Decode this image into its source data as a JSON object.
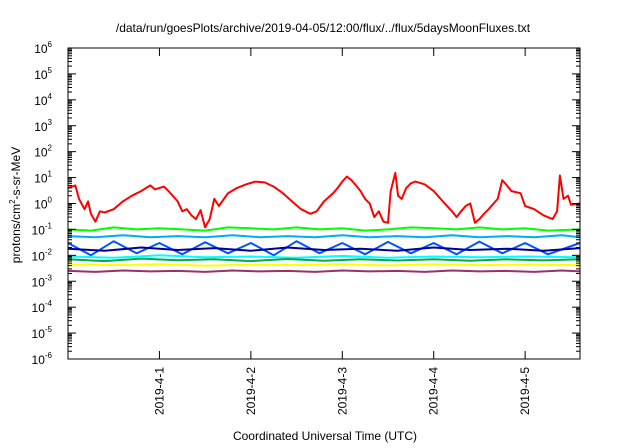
{
  "chart_data": {
    "type": "line",
    "title": "/data/run/goesPlots/archive/2019-04-05/12:00/flux/../flux/5daysMoonFluxes.txt",
    "xlabel": "Coordinated Universal Time (UTC)",
    "ylabel_parts": [
      "protons/cm",
      "2",
      "-s-sr-MeV"
    ],
    "yscale": "log",
    "ylim": [
      1e-06,
      1000000.0
    ],
    "xlim": [
      0,
      5.6
    ],
    "xlim_note": "days after 2019-03-31 00:00 UTC",
    "grid": false,
    "legend": "none",
    "xticks": [
      {
        "x": 1,
        "label": "2019-4-1"
      },
      {
        "x": 2,
        "label": "2019-4-2"
      },
      {
        "x": 3,
        "label": "2019-4-3"
      },
      {
        "x": 4,
        "label": "2019-4-4"
      },
      {
        "x": 5,
        "label": "2019-4-5"
      }
    ],
    "yticks": [
      {
        "exp": "-6",
        "value": 1e-06
      },
      {
        "exp": "-5",
        "value": 1e-05
      },
      {
        "exp": "-4",
        "value": 0.0001
      },
      {
        "exp": "-3",
        "value": 0.001
      },
      {
        "exp": "-2",
        "value": 0.01
      },
      {
        "exp": "-1",
        "value": 0.1
      },
      {
        "exp": "0",
        "value": 1
      },
      {
        "exp": "1",
        "value": 10
      },
      {
        "exp": "2",
        "value": 100
      },
      {
        "exp": "3",
        "value": 1000
      },
      {
        "exp": "4",
        "value": 10000
      },
      {
        "exp": "5",
        "value": 100000
      },
      {
        "exp": "6",
        "value": 1000000
      }
    ],
    "series": [
      {
        "color": "#ff0000",
        "width": 2,
        "values": [
          [
            0.0,
            4.0
          ],
          [
            0.08,
            5.0
          ],
          [
            0.12,
            1.5
          ],
          [
            0.18,
            0.6
          ],
          [
            0.22,
            1.2
          ],
          [
            0.25,
            0.4
          ],
          [
            0.3,
            0.2
          ],
          [
            0.35,
            0.5
          ],
          [
            0.4,
            0.45
          ],
          [
            0.5,
            0.6
          ],
          [
            0.6,
            1.2
          ],
          [
            0.7,
            2.0
          ],
          [
            0.8,
            3.0
          ],
          [
            0.9,
            5.0
          ],
          [
            0.95,
            3.5
          ],
          [
            1.05,
            4.5
          ],
          [
            1.1,
            3.0
          ],
          [
            1.2,
            1.2
          ],
          [
            1.25,
            0.5
          ],
          [
            1.3,
            0.6
          ],
          [
            1.35,
            0.35
          ],
          [
            1.4,
            0.25
          ],
          [
            1.45,
            0.55
          ],
          [
            1.5,
            0.12
          ],
          [
            1.55,
            0.25
          ],
          [
            1.6,
            1.5
          ],
          [
            1.65,
            0.8
          ],
          [
            1.75,
            2.5
          ],
          [
            1.85,
            4.0
          ],
          [
            1.95,
            5.5
          ],
          [
            2.05,
            7.0
          ],
          [
            2.15,
            6.5
          ],
          [
            2.25,
            4.5
          ],
          [
            2.35,
            2.5
          ],
          [
            2.45,
            1.2
          ],
          [
            2.55,
            0.6
          ],
          [
            2.65,
            0.4
          ],
          [
            2.72,
            0.5
          ],
          [
            2.8,
            1.2
          ],
          [
            2.9,
            2.5
          ],
          [
            2.95,
            4.0
          ],
          [
            3.0,
            7.0
          ],
          [
            3.05,
            11.0
          ],
          [
            3.1,
            8.0
          ],
          [
            3.15,
            5.0
          ],
          [
            3.2,
            3.0
          ],
          [
            3.25,
            1.5
          ],
          [
            3.3,
            1.0
          ],
          [
            3.35,
            0.3
          ],
          [
            3.4,
            0.5
          ],
          [
            3.45,
            0.2
          ],
          [
            3.5,
            0.18
          ],
          [
            3.53,
            3.0
          ],
          [
            3.58,
            15.0
          ],
          [
            3.61,
            2.0
          ],
          [
            3.65,
            1.5
          ],
          [
            3.7,
            4.0
          ],
          [
            3.75,
            6.0
          ],
          [
            3.8,
            7.0
          ],
          [
            3.9,
            5.5
          ],
          [
            4.0,
            3.0
          ],
          [
            4.1,
            1.2
          ],
          [
            4.2,
            0.5
          ],
          [
            4.25,
            0.3
          ],
          [
            4.3,
            0.5
          ],
          [
            4.35,
            0.8
          ],
          [
            4.4,
            1.0
          ],
          [
            4.45,
            0.18
          ],
          [
            4.5,
            0.25
          ],
          [
            4.55,
            0.4
          ],
          [
            4.6,
            0.6
          ],
          [
            4.7,
            1.5
          ],
          [
            4.75,
            8.0
          ],
          [
            4.8,
            5.0
          ],
          [
            4.85,
            3.0
          ],
          [
            4.95,
            2.5
          ],
          [
            5.0,
            0.8
          ],
          [
            5.1,
            0.6
          ],
          [
            5.2,
            0.35
          ],
          [
            5.3,
            0.25
          ],
          [
            5.35,
            0.5
          ],
          [
            5.38,
            12.0
          ],
          [
            5.42,
            1.5
          ],
          [
            5.47,
            2.0
          ],
          [
            5.5,
            0.9
          ],
          [
            5.6,
            1.0
          ]
        ]
      },
      {
        "color": "#00ff00",
        "width": 2,
        "values": [
          [
            0.0,
            0.1
          ],
          [
            0.25,
            0.09
          ],
          [
            0.5,
            0.12
          ],
          [
            0.75,
            0.1
          ],
          [
            1.0,
            0.11
          ],
          [
            1.25,
            0.1
          ],
          [
            1.5,
            0.09
          ],
          [
            1.75,
            0.12
          ],
          [
            2.0,
            0.11
          ],
          [
            2.25,
            0.1
          ],
          [
            2.5,
            0.12
          ],
          [
            2.75,
            0.1
          ],
          [
            3.0,
            0.11
          ],
          [
            3.25,
            0.09
          ],
          [
            3.5,
            0.1
          ],
          [
            3.75,
            0.12
          ],
          [
            4.0,
            0.11
          ],
          [
            4.25,
            0.1
          ],
          [
            4.5,
            0.12
          ],
          [
            4.75,
            0.1
          ],
          [
            5.0,
            0.11
          ],
          [
            5.25,
            0.09
          ],
          [
            5.6,
            0.1
          ]
        ]
      },
      {
        "color": "#00aaff",
        "width": 2,
        "values": [
          [
            0.0,
            0.055
          ],
          [
            0.3,
            0.05
          ],
          [
            0.6,
            0.06
          ],
          [
            0.9,
            0.05
          ],
          [
            1.2,
            0.055
          ],
          [
            1.5,
            0.05
          ],
          [
            1.8,
            0.06
          ],
          [
            2.1,
            0.05
          ],
          [
            2.4,
            0.055
          ],
          [
            2.7,
            0.05
          ],
          [
            3.0,
            0.06
          ],
          [
            3.3,
            0.05
          ],
          [
            3.6,
            0.055
          ],
          [
            3.9,
            0.05
          ],
          [
            4.2,
            0.06
          ],
          [
            4.5,
            0.05
          ],
          [
            4.8,
            0.055
          ],
          [
            5.1,
            0.05
          ],
          [
            5.4,
            0.06
          ],
          [
            5.6,
            0.05
          ]
        ]
      },
      {
        "color": "#0055ff",
        "width": 2,
        "values": [
          [
            0.0,
            0.03
          ],
          [
            0.25,
            0.01
          ],
          [
            0.5,
            0.035
          ],
          [
            0.75,
            0.012
          ],
          [
            1.0,
            0.03
          ],
          [
            1.25,
            0.011
          ],
          [
            1.5,
            0.032
          ],
          [
            1.75,
            0.012
          ],
          [
            2.0,
            0.03
          ],
          [
            2.25,
            0.01
          ],
          [
            2.5,
            0.035
          ],
          [
            2.75,
            0.012
          ],
          [
            3.0,
            0.03
          ],
          [
            3.25,
            0.011
          ],
          [
            3.5,
            0.033
          ],
          [
            3.75,
            0.012
          ],
          [
            4.0,
            0.03
          ],
          [
            4.25,
            0.011
          ],
          [
            4.5,
            0.034
          ],
          [
            4.75,
            0.012
          ],
          [
            5.0,
            0.03
          ],
          [
            5.25,
            0.011
          ],
          [
            5.6,
            0.03
          ]
        ]
      },
      {
        "color": "#000099",
        "width": 2,
        "values": [
          [
            0.0,
            0.018
          ],
          [
            0.4,
            0.015
          ],
          [
            0.8,
            0.02
          ],
          [
            1.2,
            0.016
          ],
          [
            1.6,
            0.019
          ],
          [
            2.0,
            0.015
          ],
          [
            2.4,
            0.02
          ],
          [
            2.8,
            0.016
          ],
          [
            3.2,
            0.018
          ],
          [
            3.6,
            0.015
          ],
          [
            4.0,
            0.02
          ],
          [
            4.4,
            0.016
          ],
          [
            4.8,
            0.018
          ],
          [
            5.2,
            0.015
          ],
          [
            5.6,
            0.019
          ]
        ]
      },
      {
        "color": "#00ffff",
        "width": 2,
        "values": [
          [
            0.0,
            0.009
          ],
          [
            0.5,
            0.008
          ],
          [
            1.0,
            0.01
          ],
          [
            1.5,
            0.0085
          ],
          [
            2.0,
            0.009
          ],
          [
            2.5,
            0.008
          ],
          [
            3.0,
            0.0095
          ],
          [
            3.5,
            0.008
          ],
          [
            4.0,
            0.009
          ],
          [
            4.5,
            0.0085
          ],
          [
            5.0,
            0.009
          ],
          [
            5.6,
            0.0085
          ]
        ]
      },
      {
        "color": "#00aa55",
        "width": 2,
        "values": [
          [
            0.0,
            0.007
          ],
          [
            0.4,
            0.006
          ],
          [
            0.8,
            0.0075
          ],
          [
            1.2,
            0.0065
          ],
          [
            1.6,
            0.007
          ],
          [
            2.0,
            0.006
          ],
          [
            2.4,
            0.0072
          ],
          [
            2.8,
            0.0062
          ],
          [
            3.2,
            0.007
          ],
          [
            3.6,
            0.0063
          ],
          [
            4.0,
            0.0071
          ],
          [
            4.4,
            0.0062
          ],
          [
            4.8,
            0.007
          ],
          [
            5.2,
            0.0064
          ],
          [
            5.6,
            0.007
          ]
        ]
      },
      {
        "color": "#ffff00",
        "width": 2,
        "values": [
          [
            0.0,
            0.0045
          ],
          [
            0.5,
            0.0042
          ],
          [
            1.0,
            0.0045
          ],
          [
            1.5,
            0.004
          ],
          [
            2.0,
            0.0044
          ],
          [
            2.5,
            0.0042
          ],
          [
            3.0,
            0.0046
          ],
          [
            3.5,
            0.0041
          ],
          [
            4.0,
            0.0045
          ],
          [
            4.5,
            0.0042
          ],
          [
            5.0,
            0.0044
          ],
          [
            5.6,
            0.0042
          ]
        ]
      },
      {
        "color": "#993366",
        "width": 2,
        "values": [
          [
            0.0,
            0.0025
          ],
          [
            0.3,
            0.0023
          ],
          [
            0.6,
            0.0026
          ],
          [
            0.9,
            0.0024
          ],
          [
            1.2,
            0.0025
          ],
          [
            1.5,
            0.0023
          ],
          [
            1.8,
            0.0026
          ],
          [
            2.1,
            0.0024
          ],
          [
            2.4,
            0.0025
          ],
          [
            2.7,
            0.0023
          ],
          [
            3.0,
            0.0026
          ],
          [
            3.3,
            0.0024
          ],
          [
            3.6,
            0.0025
          ],
          [
            3.9,
            0.0023
          ],
          [
            4.2,
            0.0026
          ],
          [
            4.5,
            0.0024
          ],
          [
            4.8,
            0.0025
          ],
          [
            5.1,
            0.0023
          ],
          [
            5.4,
            0.0026
          ],
          [
            5.6,
            0.0024
          ]
        ]
      }
    ]
  }
}
